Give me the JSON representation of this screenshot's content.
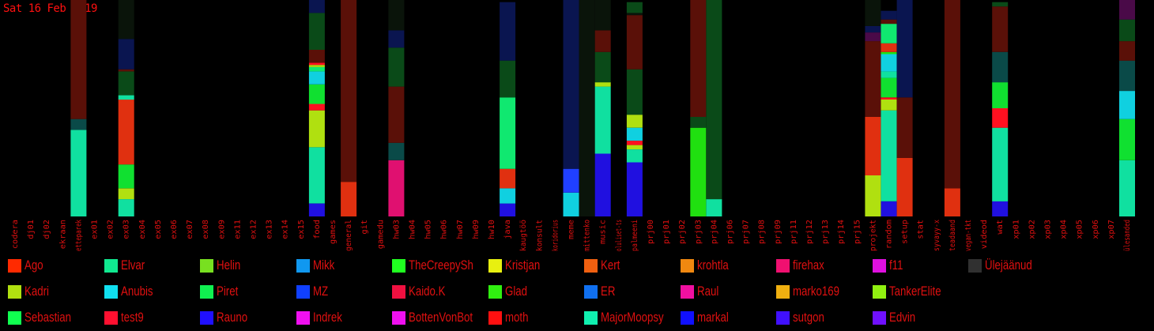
{
  "date": "Sat 16 Feb 2019",
  "colors": {
    "Ago": "#ff2a00",
    "Elvar": "#10e890",
    "Helin": "#78e020",
    "Mikk": "#1098f0",
    "TheCreepySh": "#20ff20",
    "Kristjan": "#e8f010",
    "Kert": "#f06010",
    "krohtla": "#f08810",
    "firehax": "#f01070",
    "f11": "#e010e0",
    "Ülejäänud": "#303030",
    "Kadri": "#b0e010",
    "Anubis": "#10e0f0",
    "Piret": "#10f050",
    "MZ": "#1040ff",
    "Kaido.K": "#f01040",
    "Glad": "#30f010",
    "ER": "#1070f0",
    "Raul": "#f010a0",
    "marko169": "#f0b010",
    "TankerElite": "#90f010",
    "Sebastian": "#10ff50",
    "test9": "#ff1030",
    "Rauno": "#2010ff",
    "Indrek": "#f010f0",
    "BottenVonBot": "#f010f0",
    "moth": "#ff1010",
    "MajorMoopsy": "#10f0b0",
    "markal": "#1010ff",
    "sutgon": "#4010ff",
    "Edvin": "#7010ff",
    "darkred": "#5a1008",
    "darkgreen": "#0a4a18",
    "darkteal": "#0a4a48",
    "darknavy": "#0a1550",
    "darkgray": "#0a140a",
    "darkpurple": "#4a0a48",
    "ago_orange": "#e03010",
    "elvar_mint": "#10e0a0",
    "helin_green": "#20e010",
    "mz_blue": "#2040ff",
    "rauno_blue": "#2010e0",
    "elvar_bright": "#10e870",
    "anubis_cyan": "#10d0e0",
    "red": "#ff1020",
    "mint2": "#10e0a0",
    "lime": "#b0e010",
    "green": "#10e030",
    "pink": "#e01070"
  },
  "legend": [
    [
      "Ago",
      "Elvar",
      "Helin",
      "Mikk",
      "TheCreepySh",
      "Kristjan",
      "Kert",
      "krohtla",
      "firehax",
      "f11",
      "Ülejäänud"
    ],
    [
      "Kadri",
      "Anubis",
      "Piret",
      "MZ",
      "Kaido.K",
      "Glad",
      "ER",
      "Raul",
      "marko169",
      "TankerElite"
    ],
    [
      "Sebastian",
      "test9",
      "Rauno",
      "Indrek",
      "BottenVonBot",
      "moth",
      "MajorMoopsy",
      "markal",
      "sutgon",
      "Edvin"
    ]
  ],
  "chart_data": {
    "type": "bar",
    "stacked": true,
    "ylim": [
      0,
      100
    ],
    "categories": [
      "codera",
      "dj01",
      "dj02",
      "ekraan",
      "etteparek",
      "ex01",
      "ex02",
      "ex03",
      "ex04",
      "ex05",
      "ex06",
      "ex07",
      "ex08",
      "ex09",
      "ex11",
      "ex12",
      "ex13",
      "ex14",
      "ex15",
      "food",
      "games",
      "general",
      "git",
      "gamedu",
      "hw03",
      "hw04",
      "hw05",
      "hw06",
      "hw07",
      "hw09",
      "hw10",
      "java",
      "kaugtöö",
      "konsult",
      "koridorius",
      "meme",
      "mittenko",
      "music",
      "oluliset-ts",
      "palmeeni",
      "prj00",
      "prj01",
      "prj02",
      "prj03",
      "prj04",
      "prj06",
      "prj07",
      "prj08",
      "prj09",
      "prj11",
      "prj12",
      "prj13",
      "prj14",
      "prj15",
      "projekt",
      "random",
      "setup",
      "stat",
      "syvayy-x",
      "teadaand",
      "vegan-tkt",
      "videod",
      "wat",
      "xp01",
      "xp02",
      "xp03",
      "xp04",
      "xp05",
      "xp06",
      "xp07",
      "ülesanded"
    ],
    "stacks": {
      "etteparek": [
        [
          "elvar_mint",
          40
        ],
        [
          "darkteal",
          5
        ],
        [
          "darkred",
          55
        ]
      ],
      "ex03": [
        [
          "elvar_mint",
          8
        ],
        [
          "lime",
          5
        ],
        [
          "green",
          11
        ],
        [
          "ago_orange",
          30
        ],
        [
          "elvar_mint",
          2
        ],
        [
          "darkgreen",
          11
        ],
        [
          "darkred",
          1
        ],
        [
          "darknavy",
          14
        ],
        [
          "darkgray",
          18
        ]
      ],
      "food": [
        [
          "rauno_blue",
          6
        ],
        [
          "elvar_mint",
          26
        ],
        [
          "lime",
          17
        ],
        [
          "red",
          3
        ],
        [
          "green",
          9
        ],
        [
          "anubis_cyan",
          6
        ],
        [
          "elvar_bright",
          2
        ],
        [
          "lime",
          1
        ],
        [
          "red",
          1
        ],
        [
          "darkred",
          6
        ],
        [
          "darkgreen",
          17
        ],
        [
          "darknavy",
          6
        ]
      ],
      "general": [
        [
          "ago_orange",
          16
        ],
        [
          "darkred",
          84
        ]
      ],
      "hw03": [
        [
          "pink",
          26
        ],
        [
          "darkteal",
          8
        ],
        [
          "darkred",
          26
        ],
        [
          "darkgreen",
          18
        ],
        [
          "darknavy",
          8
        ],
        [
          "darkgray",
          14
        ]
      ],
      "java": [
        [
          "rauno_blue",
          6
        ],
        [
          "anubis_cyan",
          7
        ],
        [
          "ago_orange",
          9
        ],
        [
          "elvar_bright",
          33
        ],
        [
          "darkgreen",
          17
        ],
        [
          "darknavy",
          27
        ]
      ],
      "meme": [
        [
          "anubis_cyan",
          11
        ],
        [
          "mz_blue",
          11
        ],
        [
          "darknavy",
          78
        ]
      ],
      "mittenko": [
        [
          "darkgray",
          100
        ]
      ],
      "music": [
        [
          "rauno_blue",
          29
        ],
        [
          "elvar_mint",
          31
        ],
        [
          "lime",
          2
        ],
        [
          "darkgreen",
          14
        ],
        [
          "darkred",
          10
        ],
        [
          "darkgray",
          14
        ]
      ],
      "palmeeni": [
        [
          "rauno_blue",
          25
        ],
        [
          "elvar_mint",
          6
        ],
        [
          "lime",
          2
        ],
        [
          "red",
          2
        ],
        [
          "anubis_cyan",
          6
        ],
        [
          "lime",
          6
        ],
        [
          "darkgreen",
          21
        ],
        [
          "darkred",
          25
        ],
        [
          "darkgray",
          1
        ],
        [
          "darkgreen",
          5
        ]
      ],
      "prj03": [
        [
          "helin_green",
          41
        ],
        [
          "darkgreen",
          5
        ],
        [
          "darkred",
          54
        ]
      ],
      "prj04": [
        [
          "elvar_mint",
          8
        ],
        [
          "darkgreen",
          92
        ]
      ],
      "projekt": [
        [
          "lime",
          19
        ],
        [
          "ago_orange",
          27
        ],
        [
          "darkred",
          35
        ],
        [
          "darkpurple",
          4
        ],
        [
          "darknavy",
          3
        ],
        [
          "darkgray",
          12
        ]
      ],
      "random": [
        [
          "rauno_blue",
          7
        ],
        [
          "elvar_mint",
          42
        ],
        [
          "lime",
          5
        ],
        [
          "red",
          1
        ],
        [
          "green",
          9
        ],
        [
          "elvar_mint",
          3
        ],
        [
          "anubis_cyan",
          8
        ],
        [
          "helin_green",
          1
        ],
        [
          "ago_orange",
          4
        ],
        [
          "elvar_bright",
          9
        ],
        [
          "darkred",
          2
        ],
        [
          "darknavy",
          4
        ]
      ],
      "setup": [
        [
          "ago_orange",
          27
        ],
        [
          "darkred",
          28
        ],
        [
          "darknavy",
          45
        ]
      ],
      "teadaand": [
        [
          "ago_orange",
          13
        ],
        [
          "darkred",
          87
        ]
      ],
      "wat": [
        [
          "rauno_blue",
          7
        ],
        [
          "elvar_mint",
          34
        ],
        [
          "red",
          9
        ],
        [
          "green",
          12
        ],
        [
          "darkteal",
          14
        ],
        [
          "darkred",
          21
        ],
        [
          "darkgreen",
          2
        ]
      ],
      "ülesanded": [
        [
          "elvar_mint",
          26
        ],
        [
          "green",
          19
        ],
        [
          "anubis_cyan",
          13
        ],
        [
          "darkteal",
          14
        ],
        [
          "darkred",
          9
        ],
        [
          "darkgreen",
          10
        ],
        [
          "darkpurple",
          9
        ]
      ]
    }
  }
}
